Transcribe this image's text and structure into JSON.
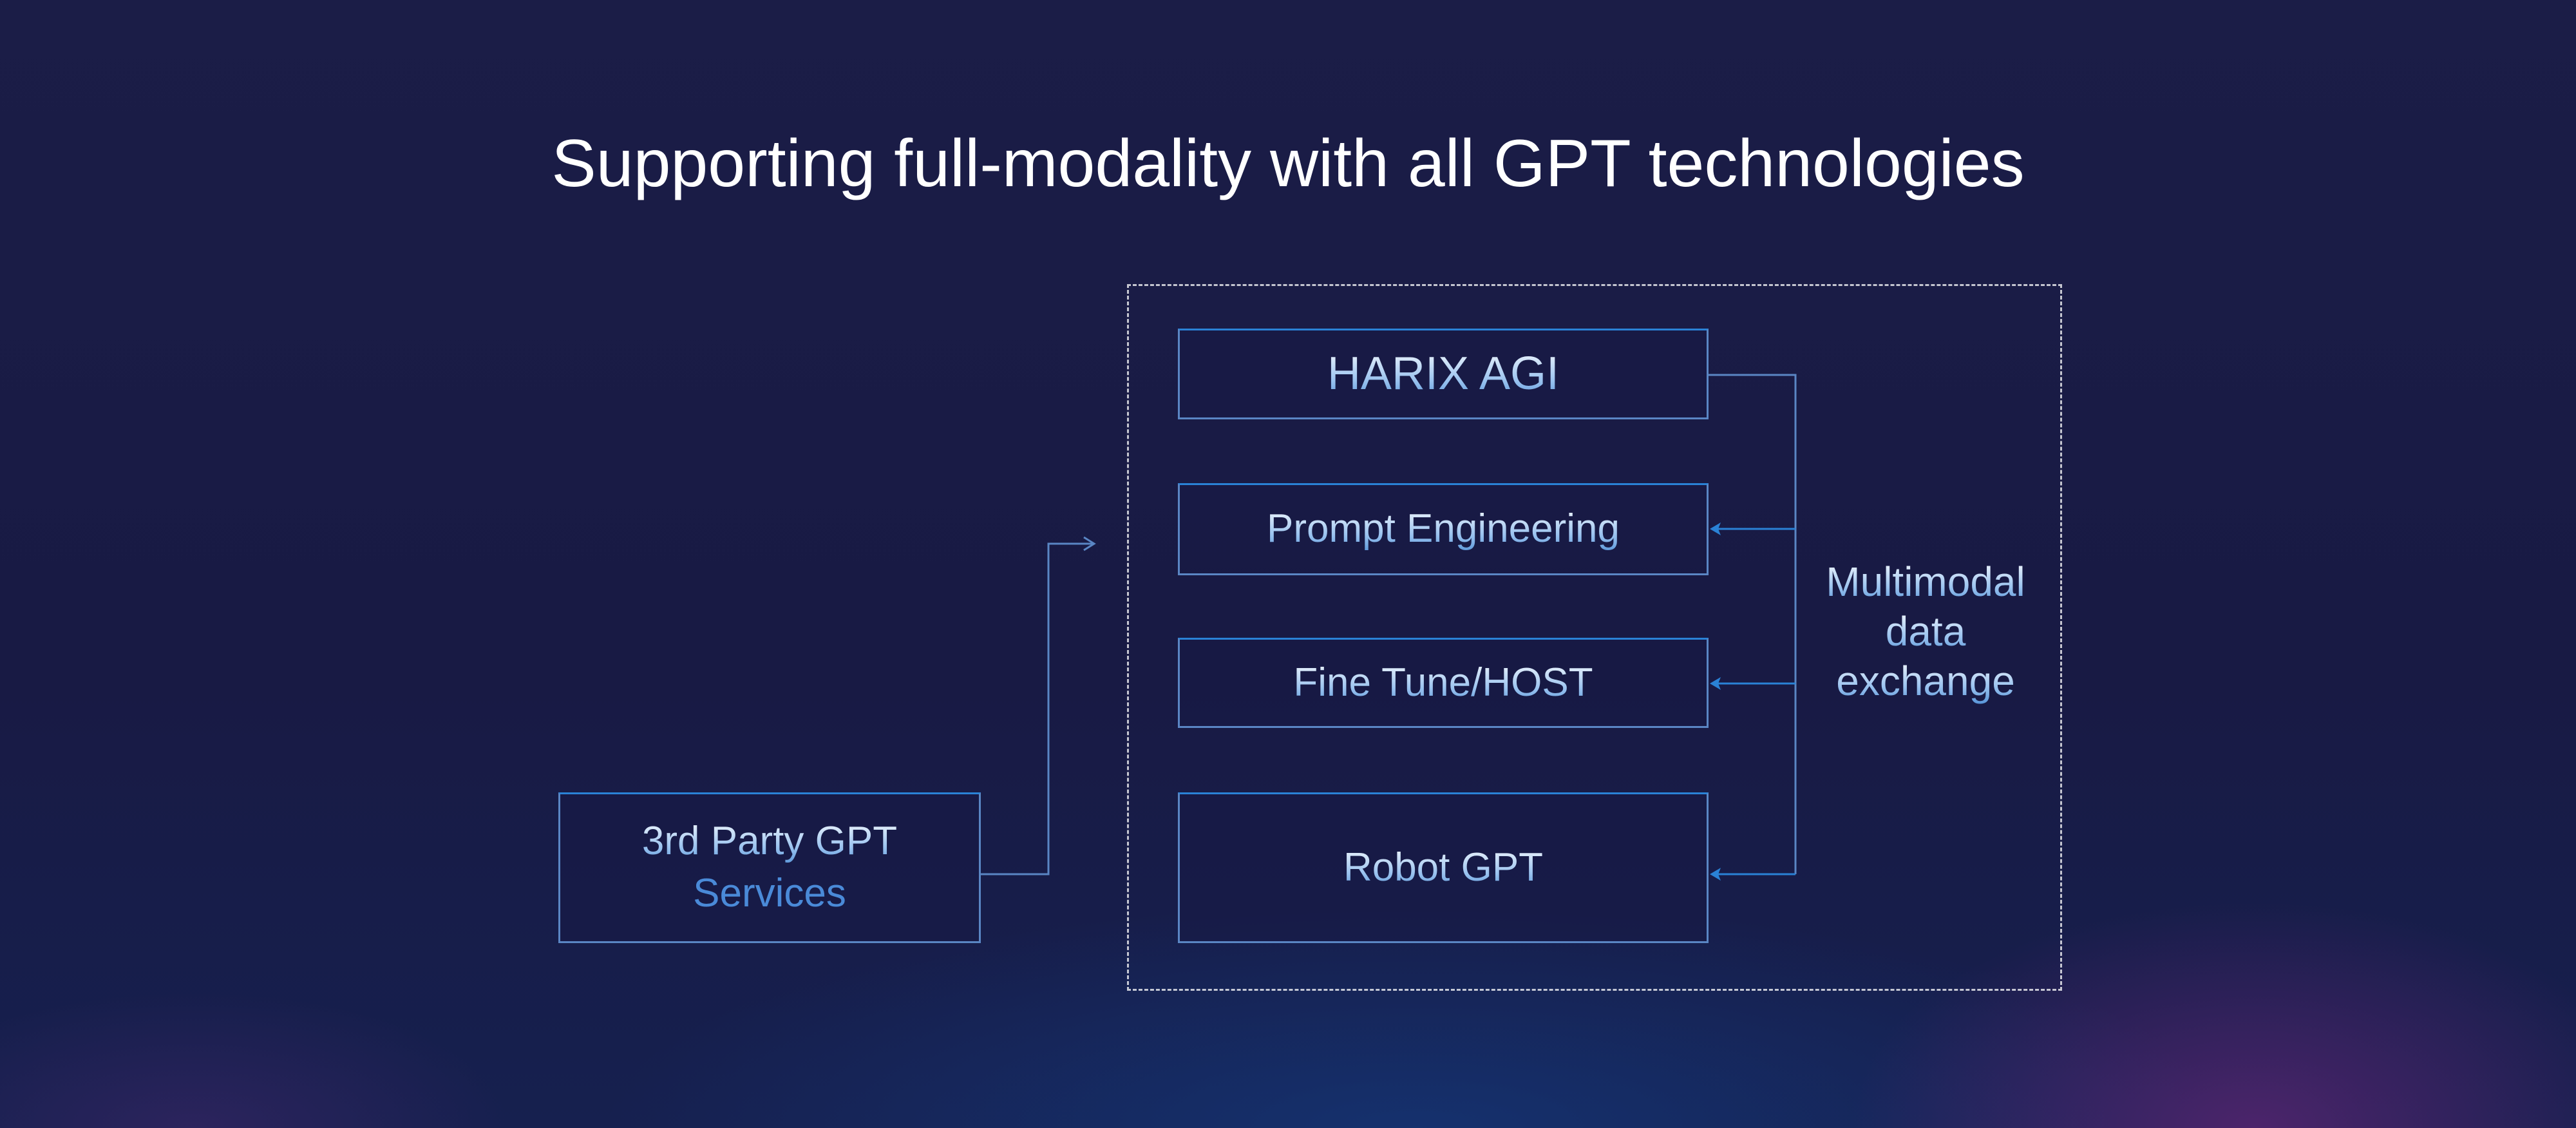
{
  "title": "Supporting full-modality with all GPT technologies",
  "boxes": {
    "harix": "HARIX AGI",
    "prompt": "Prompt Engineering",
    "finetune": "Fine Tune/HOST",
    "robot": "Robot GPT",
    "third_party_line1": "3rd Party GPT",
    "third_party_line2": "Services"
  },
  "exchange_label": [
    "Multimodal",
    "data",
    "exchange"
  ],
  "colors": {
    "background": "#181a44",
    "accent": "#2a82d6",
    "text_blue": "#4a8ad8"
  }
}
